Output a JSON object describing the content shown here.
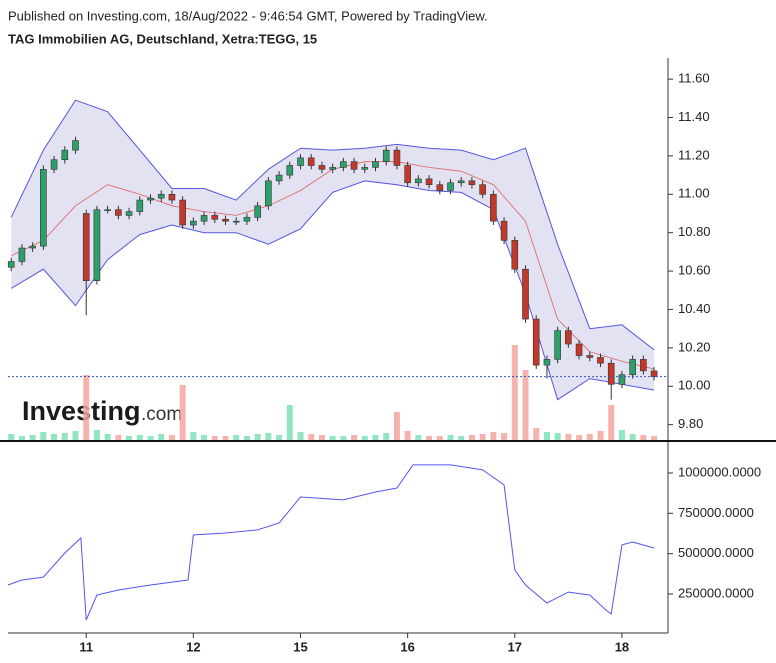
{
  "header": {
    "published": "Published on Investing.com, 18/Aug/2022 - 9:46:54 GMT, Powered by TradingView.",
    "title": "TAG Immobilien AG, Deutschland, Xetra:TEGG, 15"
  },
  "watermark": {
    "brand": "Investing",
    "suffix": ".com"
  },
  "chart_data": [
    {
      "type": "candlestick",
      "x": [
        -0.7,
        -0.6,
        -0.5,
        -0.4,
        -0.3,
        -0.2,
        -0.1,
        0,
        0.1,
        0.2,
        0.3,
        0.4,
        0.5,
        0.6,
        0.7,
        0.8,
        0.9,
        1,
        1.1,
        1.2,
        1.3,
        1.4,
        1.5,
        1.6,
        1.7,
        1.8,
        1.9,
        2,
        2.1,
        2.2,
        2.3,
        2.4,
        2.5,
        2.6,
        2.7,
        2.8,
        2.9,
        3,
        3.1,
        3.2,
        3.3,
        3.4,
        3.5,
        3.6,
        3.7,
        3.8,
        3.9,
        4,
        4.1,
        4.2,
        4.3,
        4.4,
        4.5,
        4.6,
        4.7,
        4.8,
        4.9,
        5,
        5.1,
        5.2,
        5.3
      ],
      "open": [
        10.62,
        10.65,
        10.72,
        10.73,
        11.13,
        11.18,
        11.23,
        10.9,
        10.55,
        10.92,
        10.92,
        10.89,
        10.91,
        10.97,
        10.98,
        11.0,
        10.97,
        10.84,
        10.86,
        10.89,
        10.87,
        10.86,
        10.86,
        10.88,
        10.94,
        11.07,
        11.1,
        11.15,
        11.19,
        11.15,
        11.13,
        11.14,
        11.17,
        11.13,
        11.14,
        11.17,
        11.23,
        11.15,
        11.06,
        11.08,
        11.05,
        11.02,
        11.06,
        11.07,
        11.05,
        11.0,
        10.86,
        10.76,
        10.61,
        10.35,
        10.11,
        10.14,
        10.29,
        10.22,
        10.16,
        10.15,
        10.12,
        10.01,
        10.06,
        10.14,
        10.08
      ],
      "high": [
        10.67,
        10.74,
        10.75,
        11.15,
        11.2,
        11.25,
        11.3,
        10.92,
        10.94,
        10.94,
        10.94,
        10.93,
        10.99,
        11.0,
        11.02,
        11.02,
        10.99,
        10.88,
        10.91,
        10.91,
        10.89,
        10.88,
        10.9,
        10.96,
        11.09,
        11.12,
        11.17,
        11.21,
        11.21,
        11.17,
        11.16,
        11.19,
        11.19,
        11.16,
        11.19,
        11.25,
        11.25,
        11.17,
        11.1,
        11.1,
        11.07,
        11.08,
        11.09,
        11.09,
        11.07,
        11.02,
        10.88,
        10.78,
        10.63,
        10.37,
        10.16,
        10.31,
        10.31,
        10.24,
        10.18,
        10.17,
        10.14,
        10.08,
        10.16,
        10.16,
        10.1
      ],
      "low": [
        10.6,
        10.63,
        10.7,
        10.71,
        11.11,
        11.16,
        11.21,
        10.37,
        10.53,
        10.9,
        10.87,
        10.87,
        10.89,
        10.95,
        10.96,
        10.95,
        10.82,
        10.82,
        10.84,
        10.85,
        10.84,
        10.84,
        10.84,
        10.86,
        10.92,
        11.05,
        11.08,
        11.13,
        11.13,
        11.11,
        11.11,
        11.12,
        11.11,
        11.11,
        11.12,
        11.15,
        11.13,
        11.04,
        11.04,
        11.03,
        11.0,
        11.0,
        11.04,
        11.03,
        10.98,
        10.84,
        10.74,
        10.59,
        10.33,
        10.09,
        10.04,
        10.12,
        10.2,
        10.14,
        10.13,
        10.1,
        9.93,
        9.99,
        10.04,
        10.06,
        10.03
      ],
      "close": [
        10.65,
        10.72,
        10.73,
        11.13,
        11.18,
        11.23,
        11.28,
        10.55,
        10.92,
        10.92,
        10.89,
        10.91,
        10.97,
        10.98,
        11.0,
        10.97,
        10.84,
        10.86,
        10.89,
        10.87,
        10.86,
        10.86,
        10.88,
        10.94,
        11.07,
        11.1,
        11.15,
        11.19,
        11.15,
        11.13,
        11.14,
        11.17,
        11.13,
        11.14,
        11.17,
        11.23,
        11.15,
        11.06,
        11.08,
        11.05,
        11.02,
        11.06,
        11.07,
        11.05,
        11.0,
        10.86,
        10.76,
        10.61,
        10.35,
        10.11,
        10.14,
        10.29,
        10.22,
        10.16,
        10.15,
        10.12,
        10.01,
        10.06,
        10.14,
        10.08,
        10.05
      ],
      "volume": [
        6,
        4,
        5,
        8,
        6,
        7,
        9,
        65,
        10,
        6,
        5,
        4,
        5,
        4,
        6,
        5,
        55,
        8,
        5,
        4,
        4,
        5,
        4,
        6,
        7,
        5,
        35,
        8,
        6,
        5,
        4,
        4,
        5,
        4,
        5,
        7,
        28,
        9,
        5,
        4,
        4,
        5,
        4,
        5,
        6,
        8,
        7,
        95,
        70,
        12,
        8,
        7,
        6,
        5,
        6,
        9,
        35,
        10,
        6,
        5,
        4
      ],
      "up_color": "#2e9e6b",
      "down_color": "#c0392b",
      "volume_up_color": "#7ee0b5",
      "volume_down_color": "#f4a6a0",
      "volume_lim": [
        0,
        100
      ],
      "bands": {
        "x": [
          -0.7,
          -0.4,
          -0.1,
          0.2,
          0.5,
          0.8,
          1.1,
          1.4,
          1.7,
          2.0,
          2.3,
          2.6,
          2.9,
          3.2,
          3.5,
          3.8,
          4.1,
          4.4,
          4.7,
          5.0,
          5.3
        ],
        "upper": [
          10.88,
          11.23,
          11.49,
          11.43,
          11.23,
          11.03,
          11.03,
          10.97,
          11.13,
          11.24,
          11.23,
          11.24,
          11.26,
          11.24,
          11.23,
          11.18,
          11.24,
          10.74,
          10.3,
          10.32,
          10.19
        ],
        "middle": [
          10.68,
          10.76,
          10.94,
          11.05,
          11.0,
          10.94,
          10.91,
          10.89,
          10.94,
          11.02,
          11.13,
          11.17,
          11.17,
          11.14,
          11.12,
          11.05,
          10.86,
          10.35,
          10.18,
          10.13,
          10.09
        ],
        "lower": [
          10.51,
          10.61,
          10.42,
          10.66,
          10.79,
          10.84,
          10.8,
          10.8,
          10.74,
          10.82,
          11.01,
          11.07,
          11.05,
          11.02,
          11.01,
          10.92,
          10.48,
          9.93,
          10.04,
          10.01,
          9.98
        ],
        "band_color": "#5555dd",
        "fill": "#e2e2f2",
        "middle_color": "#e06060"
      },
      "price_line": 10.05,
      "price_line_color": "#3355bb",
      "xlim": [
        -0.73,
        5.43
      ],
      "ylim": [
        9.72,
        11.71
      ],
      "yticks": [
        {
          "value": 9.8,
          "label": "9.80"
        },
        {
          "value": 10,
          "label": "10.00"
        },
        {
          "value": 10.2,
          "label": "10.20"
        },
        {
          "value": 10.4,
          "label": "10.40"
        },
        {
          "value": 10.6,
          "label": "10.60"
        },
        {
          "value": 10.8,
          "label": "10.80"
        },
        {
          "value": 11,
          "label": "11.00"
        },
        {
          "value": 11.2,
          "label": "11.20"
        },
        {
          "value": 11.4,
          "label": "11.40"
        },
        {
          "value": 11.6,
          "label": "11.60"
        }
      ]
    },
    {
      "type": "line",
      "x": [
        -0.73,
        -0.6,
        -0.4,
        -0.2,
        -0.05,
        0,
        0.1,
        0.3,
        0.6,
        0.95,
        1,
        1.3,
        1.6,
        1.8,
        2,
        2.4,
        2.7,
        2.9,
        3.05,
        3.4,
        3.7,
        3.9,
        4,
        4.1,
        4.3,
        4.5,
        4.7,
        4.85,
        4.9,
        5,
        5.1,
        5.3
      ],
      "values": [
        306000,
        337000,
        355000,
        504000,
        597000,
        89000,
        244000,
        275000,
        306000,
        337000,
        616000,
        628000,
        647000,
        690000,
        851000,
        833000,
        882000,
        907000,
        1050000,
        1050000,
        1019000,
        926000,
        399000,
        306000,
        194000,
        262000,
        244000,
        151000,
        126000,
        554000,
        572000,
        535000
      ],
      "color": "#5555ee",
      "xlim": [
        -0.73,
        5.43
      ],
      "ylim": [
        8300,
        1192000
      ],
      "yticks": [
        {
          "value": 250000,
          "label": "250000.0000"
        },
        {
          "value": 500000,
          "label": "500000.0000"
        },
        {
          "value": 750000,
          "label": "750000.0000"
        },
        {
          "value": 1000000,
          "label": "1000000.0000"
        }
      ],
      "xticks": [
        {
          "value": 0,
          "label": "11"
        },
        {
          "value": 1,
          "label": "12"
        },
        {
          "value": 2,
          "label": "15"
        },
        {
          "value": 3,
          "label": "16"
        },
        {
          "value": 4,
          "label": "17"
        },
        {
          "value": 5,
          "label": "18"
        }
      ]
    }
  ]
}
